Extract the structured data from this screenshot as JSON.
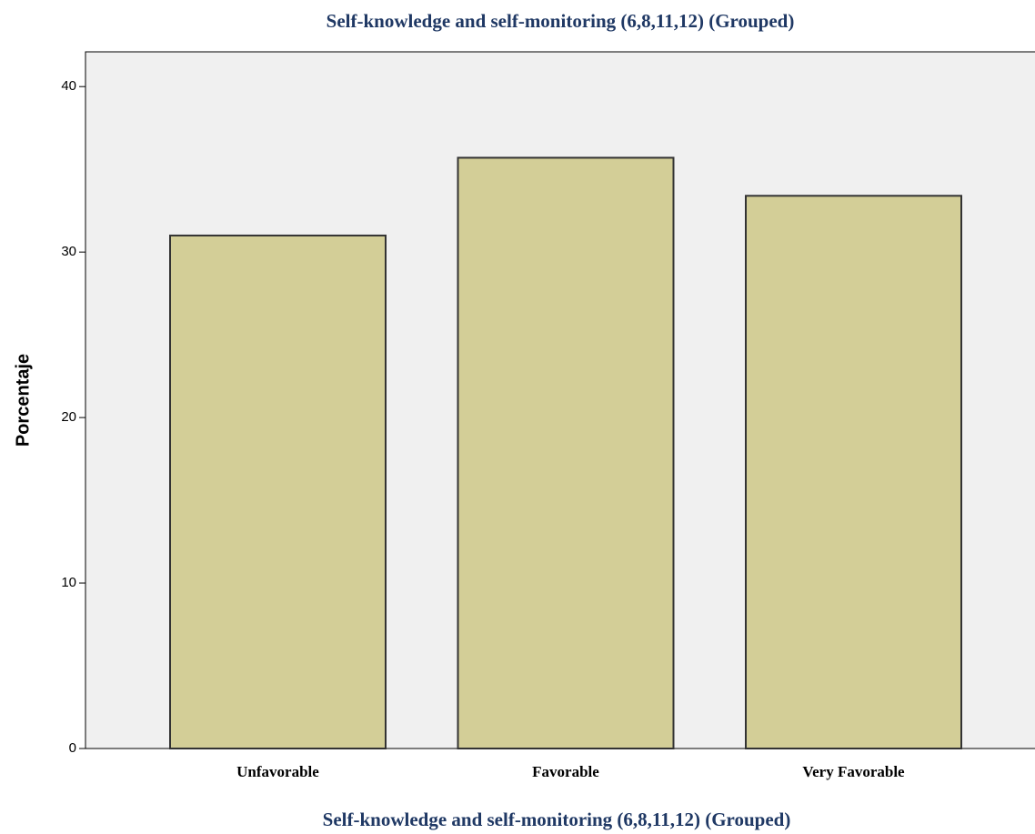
{
  "chart_data": {
    "type": "bar",
    "title": "Self-knowledge and self-monitoring (6,8,11,12) (Grouped)",
    "xlabel": "Self-knowledge and self-monitoring (6,8,11,12) (Grouped)",
    "ylabel": "Porcentaje",
    "categories": [
      "Unfavorable",
      "Favorable",
      "Very Favorable"
    ],
    "values": [
      31.0,
      35.7,
      33.4
    ],
    "color": "#d3ce97",
    "ylim": [
      0,
      42.1
    ],
    "yticks": [
      0,
      10,
      20,
      30,
      40
    ],
    "grid": false
  }
}
